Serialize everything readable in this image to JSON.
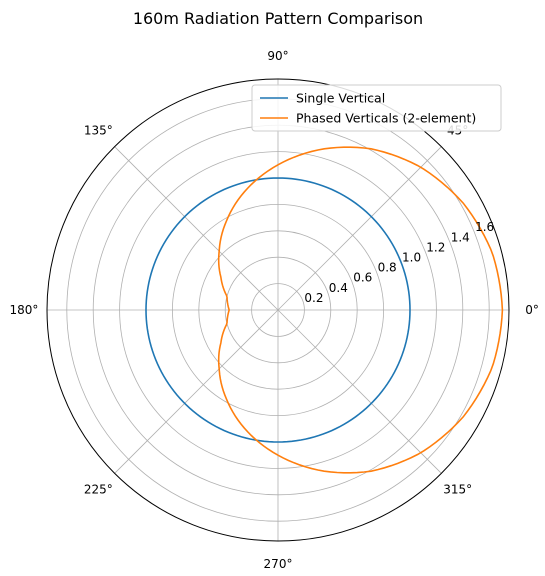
{
  "chart_data": {
    "type": "line",
    "projection": "polar",
    "title": "160m Radiation Pattern Comparison",
    "theta_unit": "degrees",
    "theta_ticks": [
      "0°",
      "45°",
      "90°",
      "135°",
      "180°",
      "225°",
      "270°",
      "315°"
    ],
    "r_ticks": [
      "0.2",
      "0.4",
      "0.6",
      "0.8",
      "1.0",
      "1.2",
      "1.4",
      "1.6"
    ],
    "rlim": [
      0,
      1.75
    ],
    "grid": true,
    "legend_position": "upper-right",
    "series": [
      {
        "name": "Single Vertical",
        "color": "#1f77b4",
        "theta": [
          0,
          15,
          30,
          45,
          60,
          75,
          90,
          105,
          120,
          135,
          150,
          165,
          180,
          195,
          210,
          225,
          240,
          255,
          270,
          285,
          300,
          315,
          330,
          345,
          360
        ],
        "r": [
          1,
          1,
          1,
          1,
          1,
          1,
          1,
          1,
          1,
          1,
          1,
          1,
          1,
          1,
          1,
          1,
          1,
          1,
          1,
          1,
          1,
          1,
          1,
          1,
          1
        ]
      },
      {
        "name": "Phased Verticals (2-element)",
        "color": "#ff7f0e",
        "theta": [
          0,
          15,
          30,
          45,
          60,
          75,
          90,
          105,
          120,
          135,
          150,
          165,
          180,
          195,
          210,
          225,
          240,
          255,
          270,
          285,
          300,
          315,
          330,
          345,
          360
        ],
        "r": [
          1.7,
          1.68,
          1.62,
          1.53,
          1.41,
          1.26,
          1.1,
          0.94,
          0.78,
          0.63,
          0.5,
          0.4,
          0.37,
          0.4,
          0.5,
          0.63,
          0.78,
          0.94,
          1.1,
          1.26,
          1.41,
          1.53,
          1.62,
          1.68,
          1.7
        ]
      }
    ]
  }
}
